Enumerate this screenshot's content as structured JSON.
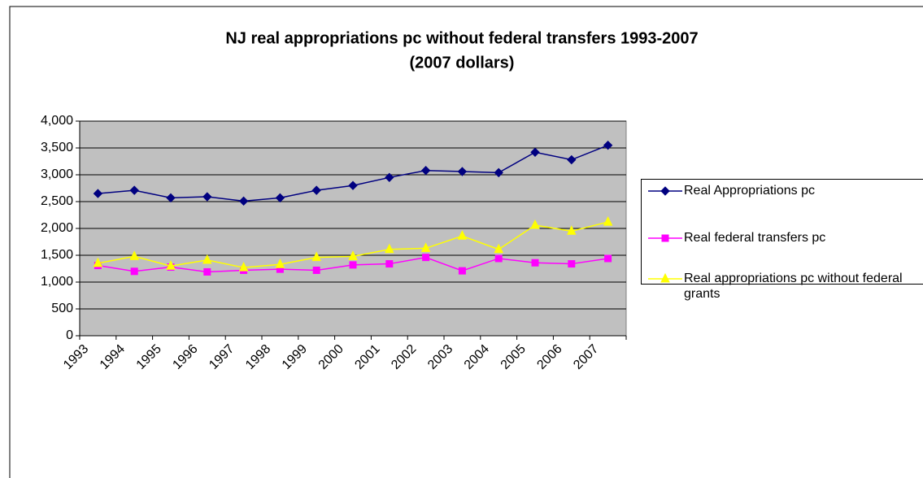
{
  "chart_data": {
    "type": "line",
    "title": "NJ real appropriations pc without federal transfers 1993-2007",
    "subtitle": "(2007 dollars)",
    "categories": [
      "1993",
      "1994",
      "1995",
      "1996",
      "1997",
      "1998",
      "1999",
      "2000",
      "2001",
      "2002",
      "2003",
      "2004",
      "2005",
      "2006",
      "2007"
    ],
    "series": [
      {
        "name": "Real Appropriations pc",
        "color": "#000080",
        "marker": "diamond",
        "values": [
          2650,
          2710,
          2570,
          2590,
          2510,
          2570,
          2710,
          2800,
          2950,
          3080,
          3060,
          3040,
          3420,
          3280,
          3550
        ]
      },
      {
        "name": "Real federal transfers pc",
        "color": "#ff00ff",
        "marker": "square",
        "values": [
          1310,
          1200,
          1280,
          1190,
          1220,
          1240,
          1220,
          1320,
          1340,
          1460,
          1210,
          1440,
          1360,
          1340,
          1440
        ]
      },
      {
        "name": "Real appropriations pc without federal grants",
        "color": "#ffff00",
        "marker": "triangle",
        "values": [
          1350,
          1480,
          1300,
          1410,
          1270,
          1330,
          1460,
          1480,
          1610,
          1630,
          1860,
          1610,
          2060,
          1950,
          2120
        ]
      }
    ],
    "ylim": [
      0,
      4000
    ],
    "yticks": [
      0,
      500,
      {
        "value": 1000,
        "label": "1,000"
      },
      {
        "value": 1500,
        "label": "1,500"
      },
      {
        "value": 2000,
        "label": "2,000"
      },
      {
        "value": 2500,
        "label": "2,500"
      },
      {
        "value": 3000,
        "label": "3,000"
      },
      {
        "value": 3500,
        "label": "3,500"
      },
      {
        "value": 4000,
        "label": "4,000"
      }
    ],
    "grid": true,
    "legend": "right"
  }
}
